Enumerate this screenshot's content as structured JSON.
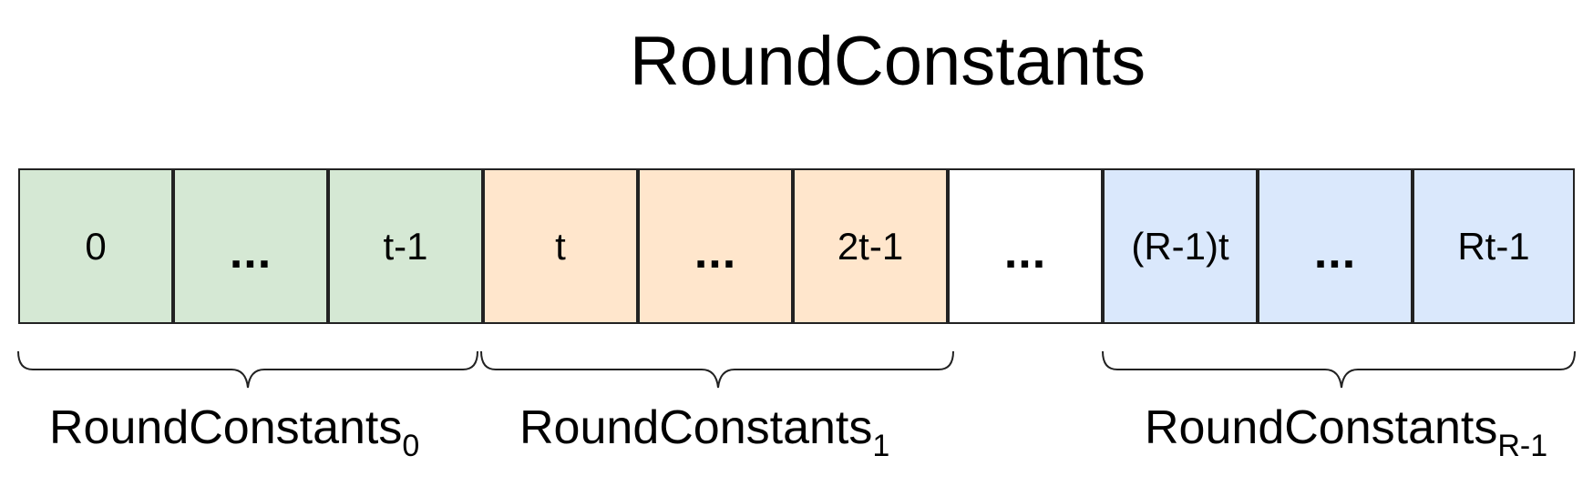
{
  "title": "RoundConstants",
  "colors": {
    "green": "#d5e8d4",
    "orange": "#ffe6cc",
    "white": "#ffffff",
    "blue": "#dae8fc",
    "border": "#222222"
  },
  "cells": [
    {
      "label": "0",
      "color": "green"
    },
    {
      "label": "...",
      "color": "green"
    },
    {
      "label": "t-1",
      "color": "green"
    },
    {
      "label": "t",
      "color": "orange"
    },
    {
      "label": "...",
      "color": "orange"
    },
    {
      "label": "2t-1",
      "color": "orange"
    },
    {
      "label": "...",
      "color": "white"
    },
    {
      "label": "(R-1)t",
      "color": "blue"
    },
    {
      "label": "...",
      "color": "blue"
    },
    {
      "label": "Rt-1",
      "color": "blue"
    }
  ],
  "groups": [
    {
      "base": "RoundConstants",
      "sub": "0"
    },
    {
      "base": "RoundConstants",
      "sub": "1"
    },
    {
      "base": "RoundConstants",
      "sub": "R-1"
    }
  ]
}
